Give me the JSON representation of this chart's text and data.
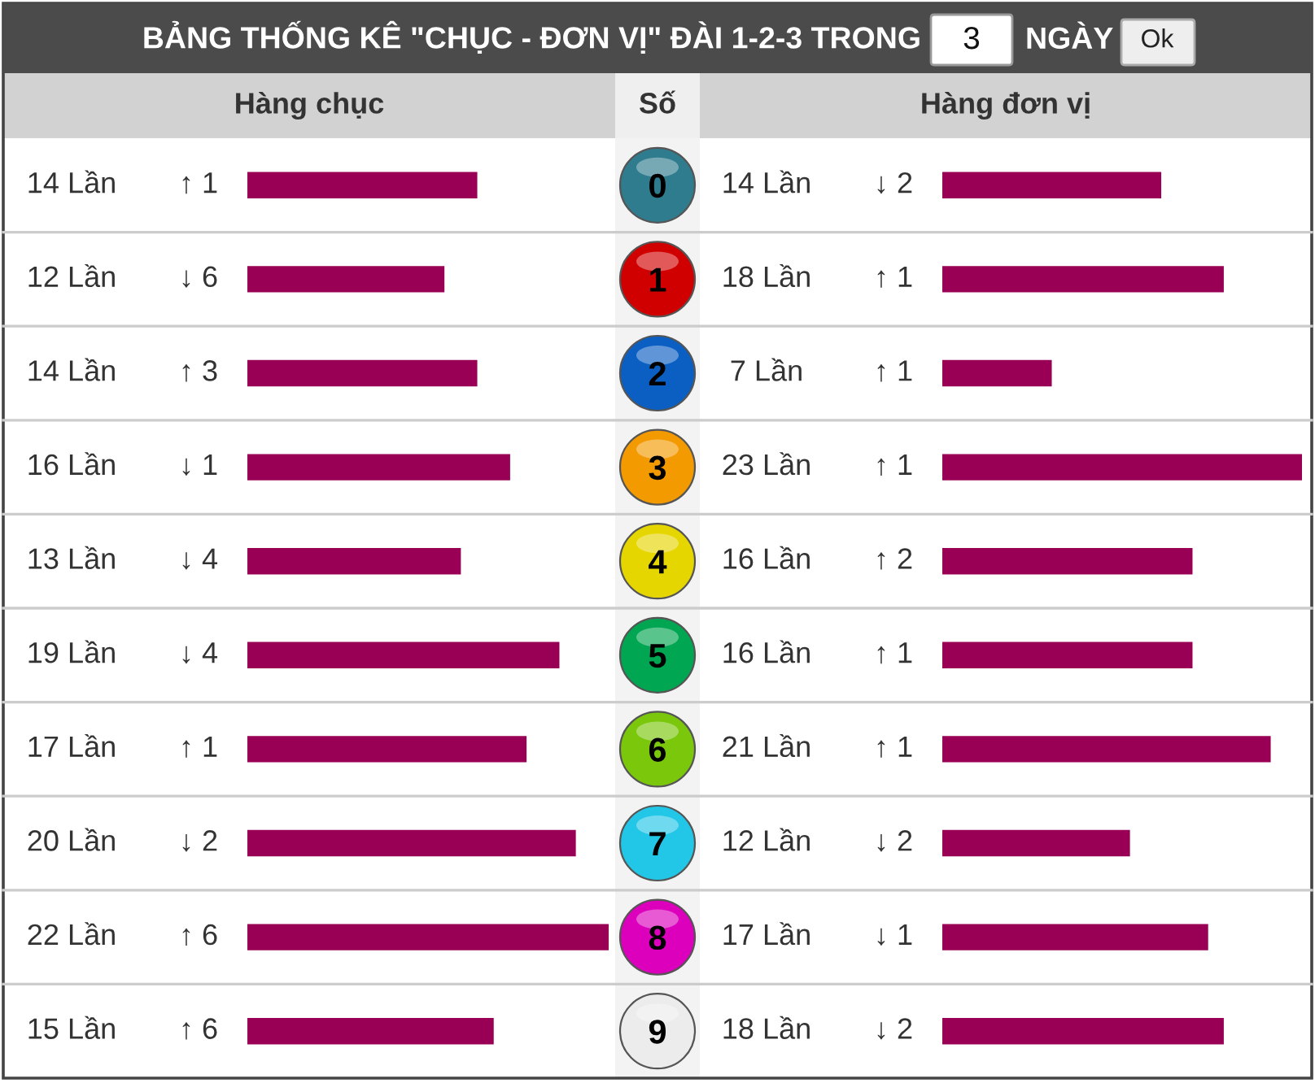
{
  "chart_data": [
    {
      "type": "other",
      "title": "BẢNG THỐNG KÊ \"CHỤC - ĐƠN VỊ\" ĐÀI 1-2-3 TRONG",
      "annotations": [
        "3",
        "NGÀY",
        "Ok"
      ]
    },
    {
      "type": "bar",
      "orientation": "horizontal",
      "title": "Hàng chục",
      "ylabel": "Số",
      "categories": [
        "0",
        "1",
        "2",
        "3",
        "4",
        "5",
        "6",
        "7",
        "8",
        "9"
      ],
      "values": [
        14,
        12,
        14,
        16,
        13,
        19,
        17,
        20,
        22,
        15
      ],
      "color": "#990055",
      "xlim": [
        0,
        22
      ],
      "tick_labels": "y",
      "value_labels": [
        "14 Lần",
        "12 Lần",
        "14 Lần",
        "16 Lần",
        "13 Lần",
        "19 Lần",
        "17 Lần",
        "20 Lần",
        "22 Lần",
        "15 Lần"
      ],
      "annotations": [
        "↑ 1",
        "↓ 6",
        "↑ 3",
        "↓ 1",
        "↓ 4",
        "↓ 4",
        "↑ 1",
        "↓ 2",
        "↑ 6",
        "↑ 6"
      ]
    },
    {
      "type": "bar",
      "orientation": "horizontal",
      "title": "Hàng đơn vị",
      "categories": [
        "0",
        "1",
        "2",
        "3",
        "4",
        "5",
        "6",
        "7",
        "8",
        "9"
      ],
      "values": [
        14,
        18,
        7,
        23,
        16,
        16,
        21,
        12,
        17,
        18
      ],
      "color": "#990055",
      "xlim": [
        0,
        23
      ],
      "tick_labels": false,
      "value_labels": [
        "14 Lần",
        "18 Lần",
        "7 Lần",
        "23 Lần",
        "16 Lần",
        "16 Lần",
        "21 Lần",
        "12 Lần",
        "17 Lần",
        "18 Lần"
      ],
      "annotations": [
        "↓ 2",
        "↑ 1",
        "↑ 1",
        "↑ 1",
        "↑ 2",
        "↑ 1",
        "↑ 1",
        "↓ 2",
        "↓ 1",
        "↓ 2"
      ]
    }
  ]
}
